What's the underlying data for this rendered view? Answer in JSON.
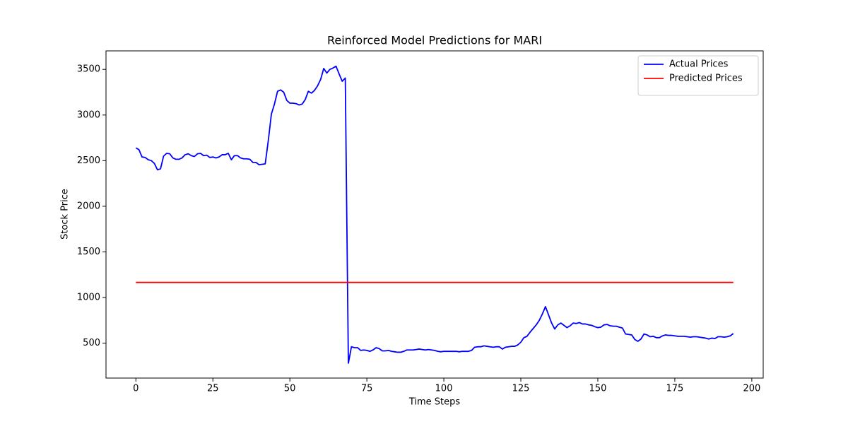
{
  "chart_data": {
    "type": "line",
    "title": "Reinforced Model Predictions for MARI",
    "x_label": "Time Steps",
    "y_label": "Stock Price",
    "series": [
      {
        "name": "Actual Prices",
        "color": "#0000ff",
        "values": [
          2640,
          2620,
          2540,
          2535,
          2510,
          2500,
          2470,
          2400,
          2410,
          2550,
          2580,
          2575,
          2530,
          2515,
          2515,
          2530,
          2565,
          2575,
          2555,
          2545,
          2575,
          2580,
          2555,
          2560,
          2535,
          2540,
          2530,
          2540,
          2565,
          2565,
          2580,
          2510,
          2555,
          2555,
          2530,
          2520,
          2520,
          2515,
          2480,
          2480,
          2455,
          2460,
          2465,
          2720,
          3010,
          3120,
          3260,
          3275,
          3250,
          3160,
          3130,
          3130,
          3125,
          3110,
          3120,
          3170,
          3260,
          3240,
          3270,
          3320,
          3390,
          3510,
          3460,
          3500,
          3515,
          3535,
          3450,
          3370,
          3405,
          280,
          460,
          450,
          450,
          420,
          425,
          420,
          410,
          425,
          450,
          440,
          415,
          415,
          420,
          410,
          405,
          400,
          400,
          410,
          425,
          425,
          425,
          430,
          435,
          430,
          425,
          430,
          425,
          420,
          410,
          405,
          410,
          410,
          410,
          410,
          410,
          405,
          410,
          410,
          410,
          420,
          455,
          460,
          460,
          470,
          465,
          460,
          455,
          460,
          460,
          435,
          455,
          460,
          465,
          465,
          480,
          510,
          560,
          575,
          620,
          660,
          700,
          750,
          820,
          900,
          810,
          720,
          655,
          700,
          720,
          695,
          670,
          690,
          720,
          715,
          725,
          710,
          710,
          700,
          695,
          680,
          670,
          675,
          700,
          705,
          690,
          685,
          685,
          675,
          665,
          600,
          595,
          590,
          540,
          520,
          545,
          600,
          590,
          570,
          575,
          560,
          560,
          580,
          590,
          585,
          585,
          580,
          575,
          575,
          575,
          570,
          565,
          570,
          570,
          565,
          560,
          555,
          545,
          555,
          550,
          570,
          570,
          565,
          570,
          580,
          605
        ]
      },
      {
        "name": "Predicted Prices",
        "color": "#ff0000",
        "values": [
          1165,
          1165,
          1165,
          1165,
          1165,
          1165,
          1165,
          1165,
          1165,
          1165,
          1165,
          1165,
          1165,
          1165,
          1165,
          1165,
          1165,
          1165,
          1165,
          1165,
          1165,
          1165,
          1165,
          1165,
          1165,
          1165,
          1165,
          1165,
          1165,
          1165,
          1165,
          1165,
          1165,
          1165,
          1165,
          1165,
          1165,
          1165,
          1165,
          1165,
          1165,
          1165,
          1165,
          1165,
          1165,
          1165,
          1165,
          1165,
          1165,
          1165,
          1165,
          1165,
          1165,
          1165,
          1165,
          1165,
          1165,
          1165,
          1165,
          1165,
          1165,
          1165,
          1165,
          1165,
          1165,
          1165,
          1165,
          1165,
          1165,
          1165,
          1165,
          1165,
          1165,
          1165,
          1165,
          1165,
          1165,
          1165,
          1165,
          1165,
          1165,
          1165,
          1165,
          1165,
          1165,
          1165,
          1165,
          1165,
          1165,
          1165,
          1165,
          1165,
          1165,
          1165,
          1165,
          1165,
          1165,
          1165,
          1165,
          1165,
          1165,
          1165,
          1165,
          1165,
          1165,
          1165,
          1165,
          1165,
          1165,
          1165,
          1165,
          1165,
          1165,
          1165,
          1165,
          1165,
          1165,
          1165,
          1165,
          1165,
          1165,
          1165,
          1165,
          1165,
          1165,
          1165,
          1165,
          1165,
          1165,
          1165,
          1165,
          1165,
          1165,
          1165,
          1165,
          1165,
          1165,
          1165,
          1165,
          1165,
          1165,
          1165,
          1165,
          1165,
          1165,
          1165,
          1165,
          1165,
          1165,
          1165,
          1165,
          1165,
          1165,
          1165,
          1165,
          1165,
          1165,
          1165,
          1165,
          1165,
          1165,
          1165,
          1165,
          1165,
          1165,
          1165,
          1165,
          1165,
          1165,
          1165,
          1165,
          1165,
          1165,
          1165,
          1165,
          1165,
          1165,
          1165,
          1165,
          1165,
          1165,
          1165,
          1165,
          1165,
          1165,
          1165,
          1165,
          1165,
          1165,
          1165,
          1165,
          1165,
          1165,
          1165,
          1165
        ]
      }
    ],
    "xlim": [
      -9.7,
      203.7
    ],
    "xticks": [
      0,
      25,
      50,
      75,
      100,
      125,
      150,
      175,
      200
    ],
    "ylim": [
      117,
      3703
    ],
    "yticks": [
      500,
      1000,
      1500,
      2000,
      2500,
      3000,
      3500
    ],
    "grid": false,
    "legend": "upper right"
  }
}
